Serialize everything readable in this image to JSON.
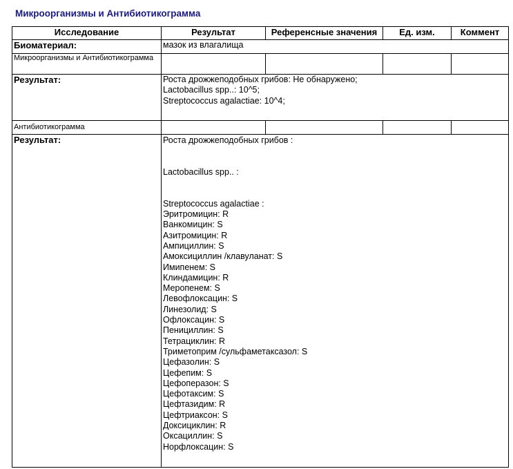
{
  "title": "Микроорганизмы и Антибиотикограмма",
  "headers": [
    "Исследование",
    "Результат",
    "Референсные значения",
    "Ед. изм.",
    "Коммент"
  ],
  "biomaterial": {
    "label": "Биоматериал:",
    "value": "мазок из влагалища"
  },
  "section1": {
    "label": "Микроорганизмы и Антибиотикограмма",
    "result_label": "Результат:",
    "lines": [
      "Роста дрожжеподобных грибов: Не обнаружено;",
      "Lactobacillus spp..: 10^5;",
      "Streptococcus agalactiae: 10^4;"
    ]
  },
  "section2": {
    "label": "Антибиотикограмма",
    "result_label": "Результат:",
    "lines": [
      "Роста дрожжеподобных грибов :",
      "",
      "",
      "Lactobacillus spp.. :",
      "",
      "",
      "Streptococcus agalactiae :",
      "Эритромицин: R",
      "Ванкомицин: S",
      "Азитромицин: R",
      "Ампициллин: S",
      "Амоксициллин /клавуланат: S",
      "Имипенем: S",
      "Клиндамицин: R",
      "Меропенем: S",
      "Левофлоксацин: S",
      "Линезолид: S",
      "Офлоксацин: S",
      "Пенициллин: S",
      "Тетрациклин: R",
      "Триметоприм /сульфаметаксазол: S",
      "Цефазолин: S",
      "Цефепим: S",
      "Цефоперазон: S",
      "Цефотаксим: S",
      "Цефтазидим: R",
      "Цефтриаксон: S",
      "Доксициклин: R",
      "Оксациллин: S",
      "Норфлоксацин: S"
    ]
  },
  "colors": {
    "title": "#1a1a80"
  }
}
